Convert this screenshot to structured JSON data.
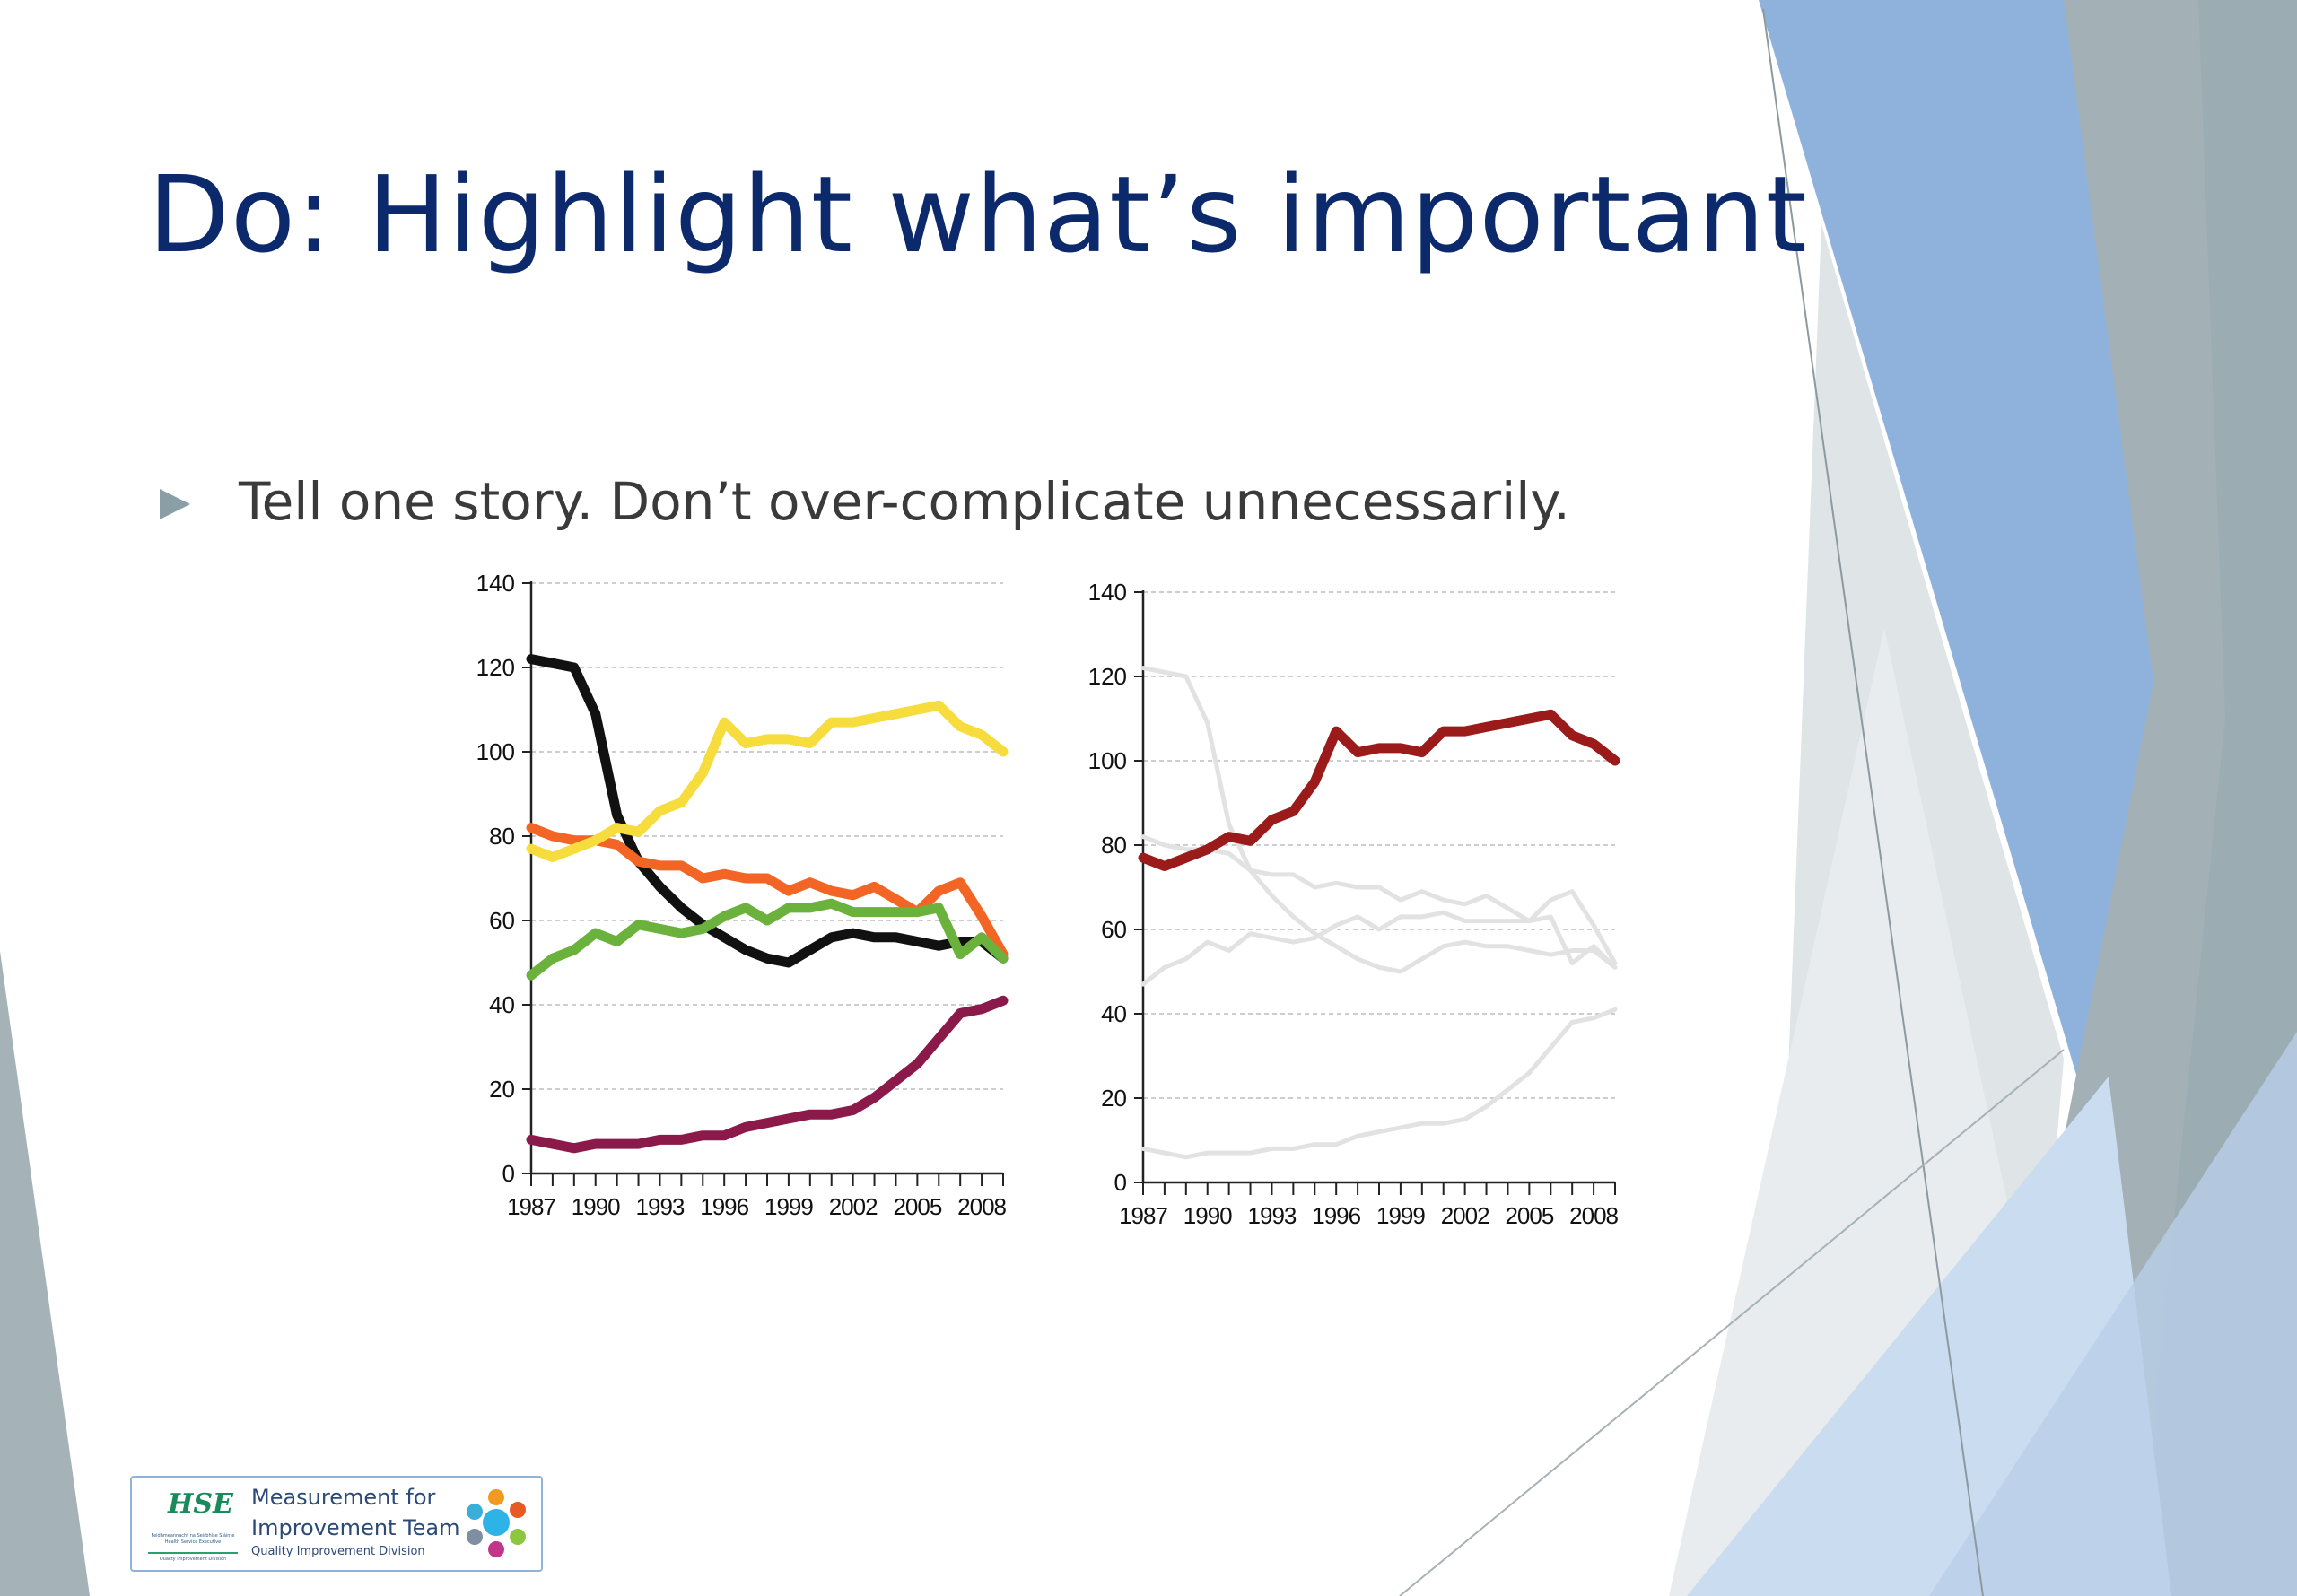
{
  "slide": {
    "title": "Do: Highlight what’s important",
    "bullet": "Tell one story. Don’t over-complicate unnecessarily."
  },
  "logo": {
    "mark": "HSE",
    "sub_line_1": "Feidhmeannacht na Seirbhíse Sláinte",
    "sub_line_2": "Health Service Executive",
    "sub_line_3": "Quality Improvement Division",
    "line1": "Measurement for",
    "line2": "Improvement Team",
    "line3": "Quality Improvement Division"
  },
  "colors": {
    "title": "#0c2a6b",
    "bullet_marker": "#8a9ea6",
    "highlight": "#9b1b1b",
    "muted": "#e2e2e2",
    "logo_dots": [
      "#f29a1f",
      "#e85a24",
      "#3aaed8",
      "#2eb3e6",
      "#8dc63f",
      "#7d8fa0",
      "#c2358b"
    ]
  },
  "chart_data": [
    {
      "type": "line",
      "title": "",
      "xlabel": "",
      "ylabel": "",
      "ylim": [
        0,
        140
      ],
      "xlim": [
        1987,
        2009
      ],
      "x_ticks": [
        "1987",
        "1990",
        "1993",
        "1996",
        "1999",
        "2002",
        "2005",
        "2008"
      ],
      "y_ticks": [
        "0",
        "20",
        "40",
        "60",
        "80",
        "100",
        "120",
        "140"
      ],
      "grid": true,
      "x": [
        1987,
        1988,
        1989,
        1990,
        1991,
        1992,
        1993,
        1994,
        1995,
        1996,
        1997,
        1998,
        1999,
        2000,
        2001,
        2002,
        2003,
        2004,
        2005,
        2006,
        2007,
        2008,
        2009
      ],
      "series": [
        {
          "name": "black",
          "color": "#111111",
          "values": [
            122,
            121,
            120,
            109,
            85,
            74,
            68,
            63,
            59,
            56,
            53,
            51,
            50,
            53,
            56,
            57,
            56,
            56,
            55,
            54,
            55,
            55,
            51
          ]
        },
        {
          "name": "orange",
          "color": "#f26524",
          "values": [
            82,
            80,
            79,
            79,
            78,
            74,
            73,
            73,
            70,
            71,
            70,
            70,
            67,
            69,
            67,
            66,
            68,
            65,
            62,
            67,
            69,
            61,
            52
          ]
        },
        {
          "name": "yellow",
          "color": "#f6dc3c",
          "values": [
            77,
            75,
            77,
            79,
            82,
            81,
            86,
            88,
            95,
            107,
            102,
            103,
            103,
            102,
            107,
            107,
            108,
            109,
            110,
            111,
            106,
            104,
            100
          ]
        },
        {
          "name": "green",
          "color": "#6ab23c",
          "values": [
            47,
            51,
            53,
            57,
            55,
            59,
            58,
            57,
            58,
            61,
            63,
            60,
            63,
            63,
            64,
            62,
            62,
            62,
            62,
            63,
            52,
            56,
            51
          ]
        },
        {
          "name": "purple",
          "color": "#8b1a4a",
          "values": [
            8,
            7,
            6,
            7,
            7,
            7,
            8,
            8,
            9,
            9,
            11,
            12,
            13,
            14,
            14,
            15,
            18,
            22,
            26,
            32,
            38,
            39,
            41
          ]
        }
      ]
    },
    {
      "type": "line",
      "title": "",
      "xlabel": "",
      "ylabel": "",
      "ylim": [
        0,
        140
      ],
      "xlim": [
        1987,
        2009
      ],
      "x_ticks": [
        "1987",
        "1990",
        "1993",
        "1996",
        "1999",
        "2002",
        "2005",
        "2008"
      ],
      "y_ticks": [
        "0",
        "20",
        "40",
        "60",
        "80",
        "100",
        "120",
        "140"
      ],
      "grid": true,
      "x": [
        1987,
        1988,
        1989,
        1990,
        1991,
        1992,
        1993,
        1994,
        1995,
        1996,
        1997,
        1998,
        1999,
        2000,
        2001,
        2002,
        2003,
        2004,
        2005,
        2006,
        2007,
        2008,
        2009
      ],
      "series": [
        {
          "name": "black",
          "color": "#e2e2e2",
          "values": [
            122,
            121,
            120,
            109,
            85,
            74,
            68,
            63,
            59,
            56,
            53,
            51,
            50,
            53,
            56,
            57,
            56,
            56,
            55,
            54,
            55,
            55,
            51
          ]
        },
        {
          "name": "orange",
          "color": "#e2e2e2",
          "values": [
            82,
            80,
            79,
            79,
            78,
            74,
            73,
            73,
            70,
            71,
            70,
            70,
            67,
            69,
            67,
            66,
            68,
            65,
            62,
            67,
            69,
            61,
            52
          ]
        },
        {
          "name": "green",
          "color": "#e2e2e2",
          "values": [
            47,
            51,
            53,
            57,
            55,
            59,
            58,
            57,
            58,
            61,
            63,
            60,
            63,
            63,
            64,
            62,
            62,
            62,
            62,
            63,
            52,
            56,
            51
          ]
        },
        {
          "name": "purple",
          "color": "#e2e2e2",
          "values": [
            8,
            7,
            6,
            7,
            7,
            7,
            8,
            8,
            9,
            9,
            11,
            12,
            13,
            14,
            14,
            15,
            18,
            22,
            26,
            32,
            38,
            39,
            41
          ]
        },
        {
          "name": "highlight",
          "color": "#9b1b1b",
          "values": [
            77,
            75,
            77,
            79,
            82,
            81,
            86,
            88,
            95,
            107,
            102,
            103,
            103,
            102,
            107,
            107,
            108,
            109,
            110,
            111,
            106,
            104,
            100
          ]
        }
      ]
    }
  ]
}
